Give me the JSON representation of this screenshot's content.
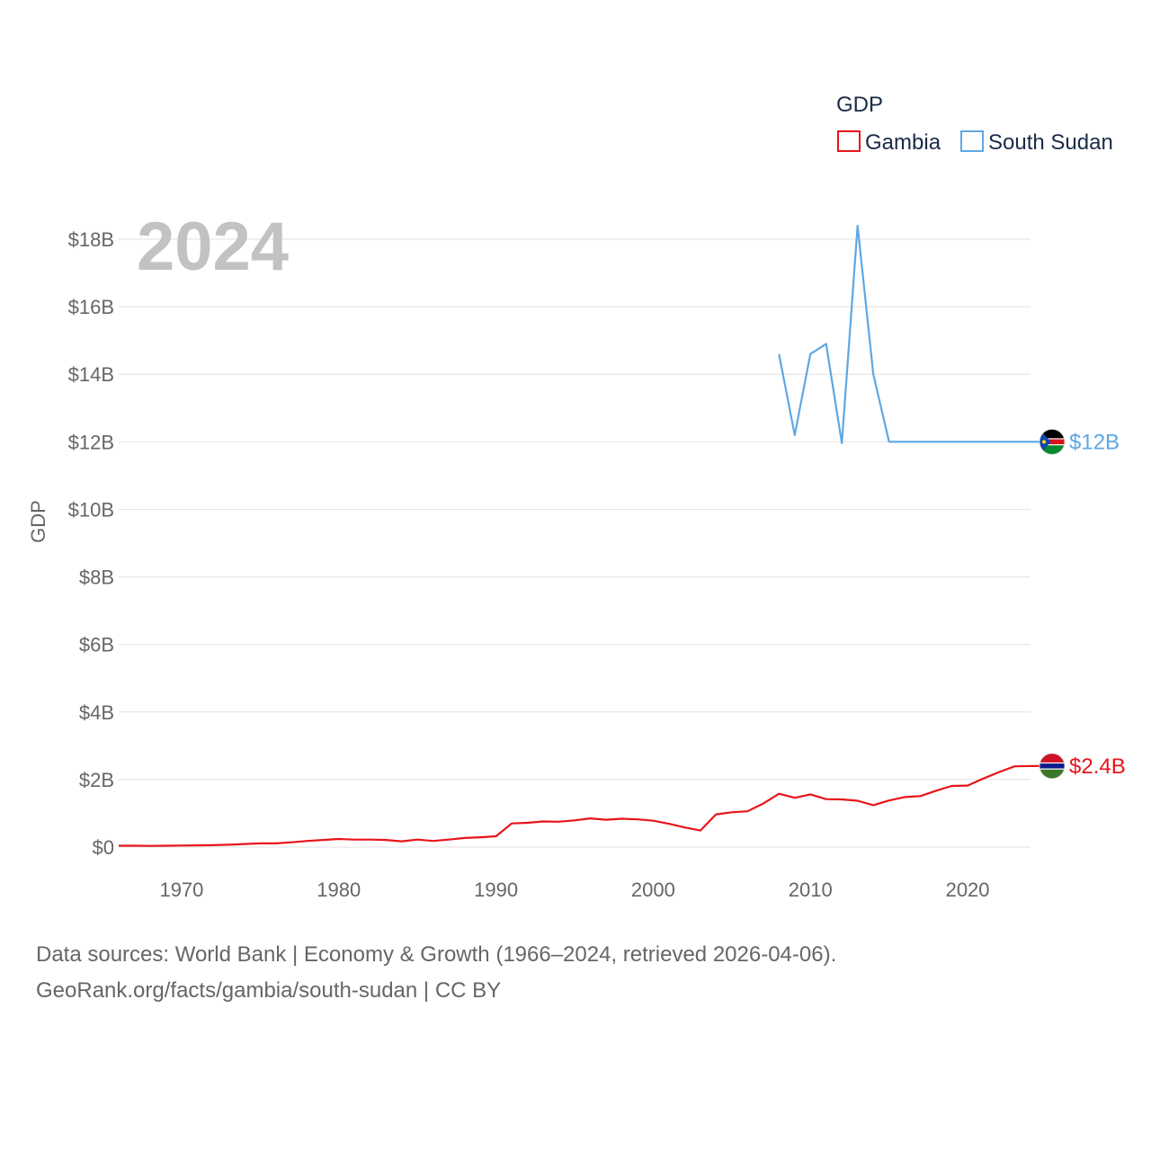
{
  "chart_data": {
    "type": "line",
    "display_year": "2024",
    "ylabel": "GDP",
    "ylim": [
      0,
      18000000000
    ],
    "xlim": [
      1966,
      2024
    ],
    "y_ticks": [
      {
        "value": 0,
        "label": "$0"
      },
      {
        "value": 2000000000,
        "label": "$2B"
      },
      {
        "value": 4000000000,
        "label": "$4B"
      },
      {
        "value": 6000000000,
        "label": "$6B"
      },
      {
        "value": 8000000000,
        "label": "$8B"
      },
      {
        "value": 10000000000,
        "label": "$10B"
      },
      {
        "value": 12000000000,
        "label": "$12B"
      },
      {
        "value": 14000000000,
        "label": "$14B"
      },
      {
        "value": 16000000000,
        "label": "$16B"
      },
      {
        "value": 18000000000,
        "label": "$18B"
      }
    ],
    "x_ticks": [
      {
        "value": 1970,
        "label": "1970"
      },
      {
        "value": 1980,
        "label": "1980"
      },
      {
        "value": 1990,
        "label": "1990"
      },
      {
        "value": 2000,
        "label": "2000"
      },
      {
        "value": 2010,
        "label": "2010"
      },
      {
        "value": 2020,
        "label": "2020"
      }
    ],
    "legend": {
      "title": "GDP",
      "position": "top-right"
    },
    "series": [
      {
        "name": "Gambia",
        "color": "#e8141a",
        "end_label": "$2.4B",
        "flag": "gambia",
        "points": [
          [
            1966,
            40000000.0
          ],
          [
            1967,
            40000000.0
          ],
          [
            1968,
            35000000.0
          ],
          [
            1969,
            40000000.0
          ],
          [
            1970,
            45000000.0
          ],
          [
            1971,
            50000000.0
          ],
          [
            1972,
            55000000.0
          ],
          [
            1973,
            70000000.0
          ],
          [
            1974,
            90000000.0
          ],
          [
            1975,
            110000000.0
          ],
          [
            1976,
            110000000.0
          ],
          [
            1977,
            140000000.0
          ],
          [
            1978,
            180000000.0
          ],
          [
            1979,
            210000000.0
          ],
          [
            1980,
            240000000.0
          ],
          [
            1981,
            220000000.0
          ],
          [
            1982,
            220000000.0
          ],
          [
            1983,
            210000000.0
          ],
          [
            1984,
            170000000.0
          ],
          [
            1985,
            220000000.0
          ],
          [
            1986,
            180000000.0
          ],
          [
            1987,
            220000000.0
          ],
          [
            1988,
            270000000.0
          ],
          [
            1989,
            290000000.0
          ],
          [
            1990,
            320000000.0
          ],
          [
            1991,
            700000000.0
          ],
          [
            1992,
            720000000.0
          ],
          [
            1993,
            760000000.0
          ],
          [
            1994,
            750000000.0
          ],
          [
            1995,
            790000000.0
          ],
          [
            1996,
            850000000.0
          ],
          [
            1997,
            810000000.0
          ],
          [
            1998,
            840000000.0
          ],
          [
            1999,
            820000000.0
          ],
          [
            2000,
            780000000.0
          ],
          [
            2001,
            690000000.0
          ],
          [
            2002,
            580000000.0
          ],
          [
            2003,
            490000000.0
          ],
          [
            2004,
            970000000.0
          ],
          [
            2005,
            1030000000.0
          ],
          [
            2006,
            1060000000.0
          ],
          [
            2007,
            1290000000.0
          ],
          [
            2008,
            1580000000.0
          ],
          [
            2009,
            1460000000.0
          ],
          [
            2010,
            1560000000.0
          ],
          [
            2011,
            1420000000.0
          ],
          [
            2012,
            1410000000.0
          ],
          [
            2013,
            1370000000.0
          ],
          [
            2014,
            1240000000.0
          ],
          [
            2015,
            1380000000.0
          ],
          [
            2016,
            1480000000.0
          ],
          [
            2017,
            1510000000.0
          ],
          [
            2018,
            1670000000.0
          ],
          [
            2019,
            1810000000.0
          ],
          [
            2020,
            1820000000.0
          ],
          [
            2021,
            2030000000.0
          ],
          [
            2022,
            2220000000.0
          ],
          [
            2023,
            2390000000.0
          ],
          [
            2024,
            2400000000.0
          ]
        ]
      },
      {
        "name": "South Sudan",
        "color": "#5fa7e3",
        "end_label": "$12B",
        "flag": "south-sudan",
        "points": [
          [
            2008,
            14600000000.0
          ],
          [
            2009,
            12200000000.0
          ],
          [
            2010,
            14600000000.0
          ],
          [
            2011,
            14900000000.0
          ],
          [
            2012,
            11960000000.0
          ],
          [
            2013,
            18400000000.0
          ],
          [
            2014,
            14000000000.0
          ],
          [
            2015,
            12000000000.0
          ],
          [
            2016,
            12000000000.0
          ],
          [
            2017,
            12000000000.0
          ],
          [
            2018,
            12000000000.0
          ],
          [
            2019,
            12000000000.0
          ],
          [
            2020,
            12000000000.0
          ],
          [
            2021,
            12000000000.0
          ],
          [
            2022,
            12000000000.0
          ],
          [
            2023,
            12000000000.0
          ],
          [
            2024,
            12000000000.0
          ]
        ]
      }
    ]
  },
  "footer": {
    "line1": "Data sources: World Bank | Economy & Growth (1966–2024, retrieved 2026-04-06).",
    "line2": "GeoRank.org/facts/gambia/south-sudan | CC BY"
  }
}
